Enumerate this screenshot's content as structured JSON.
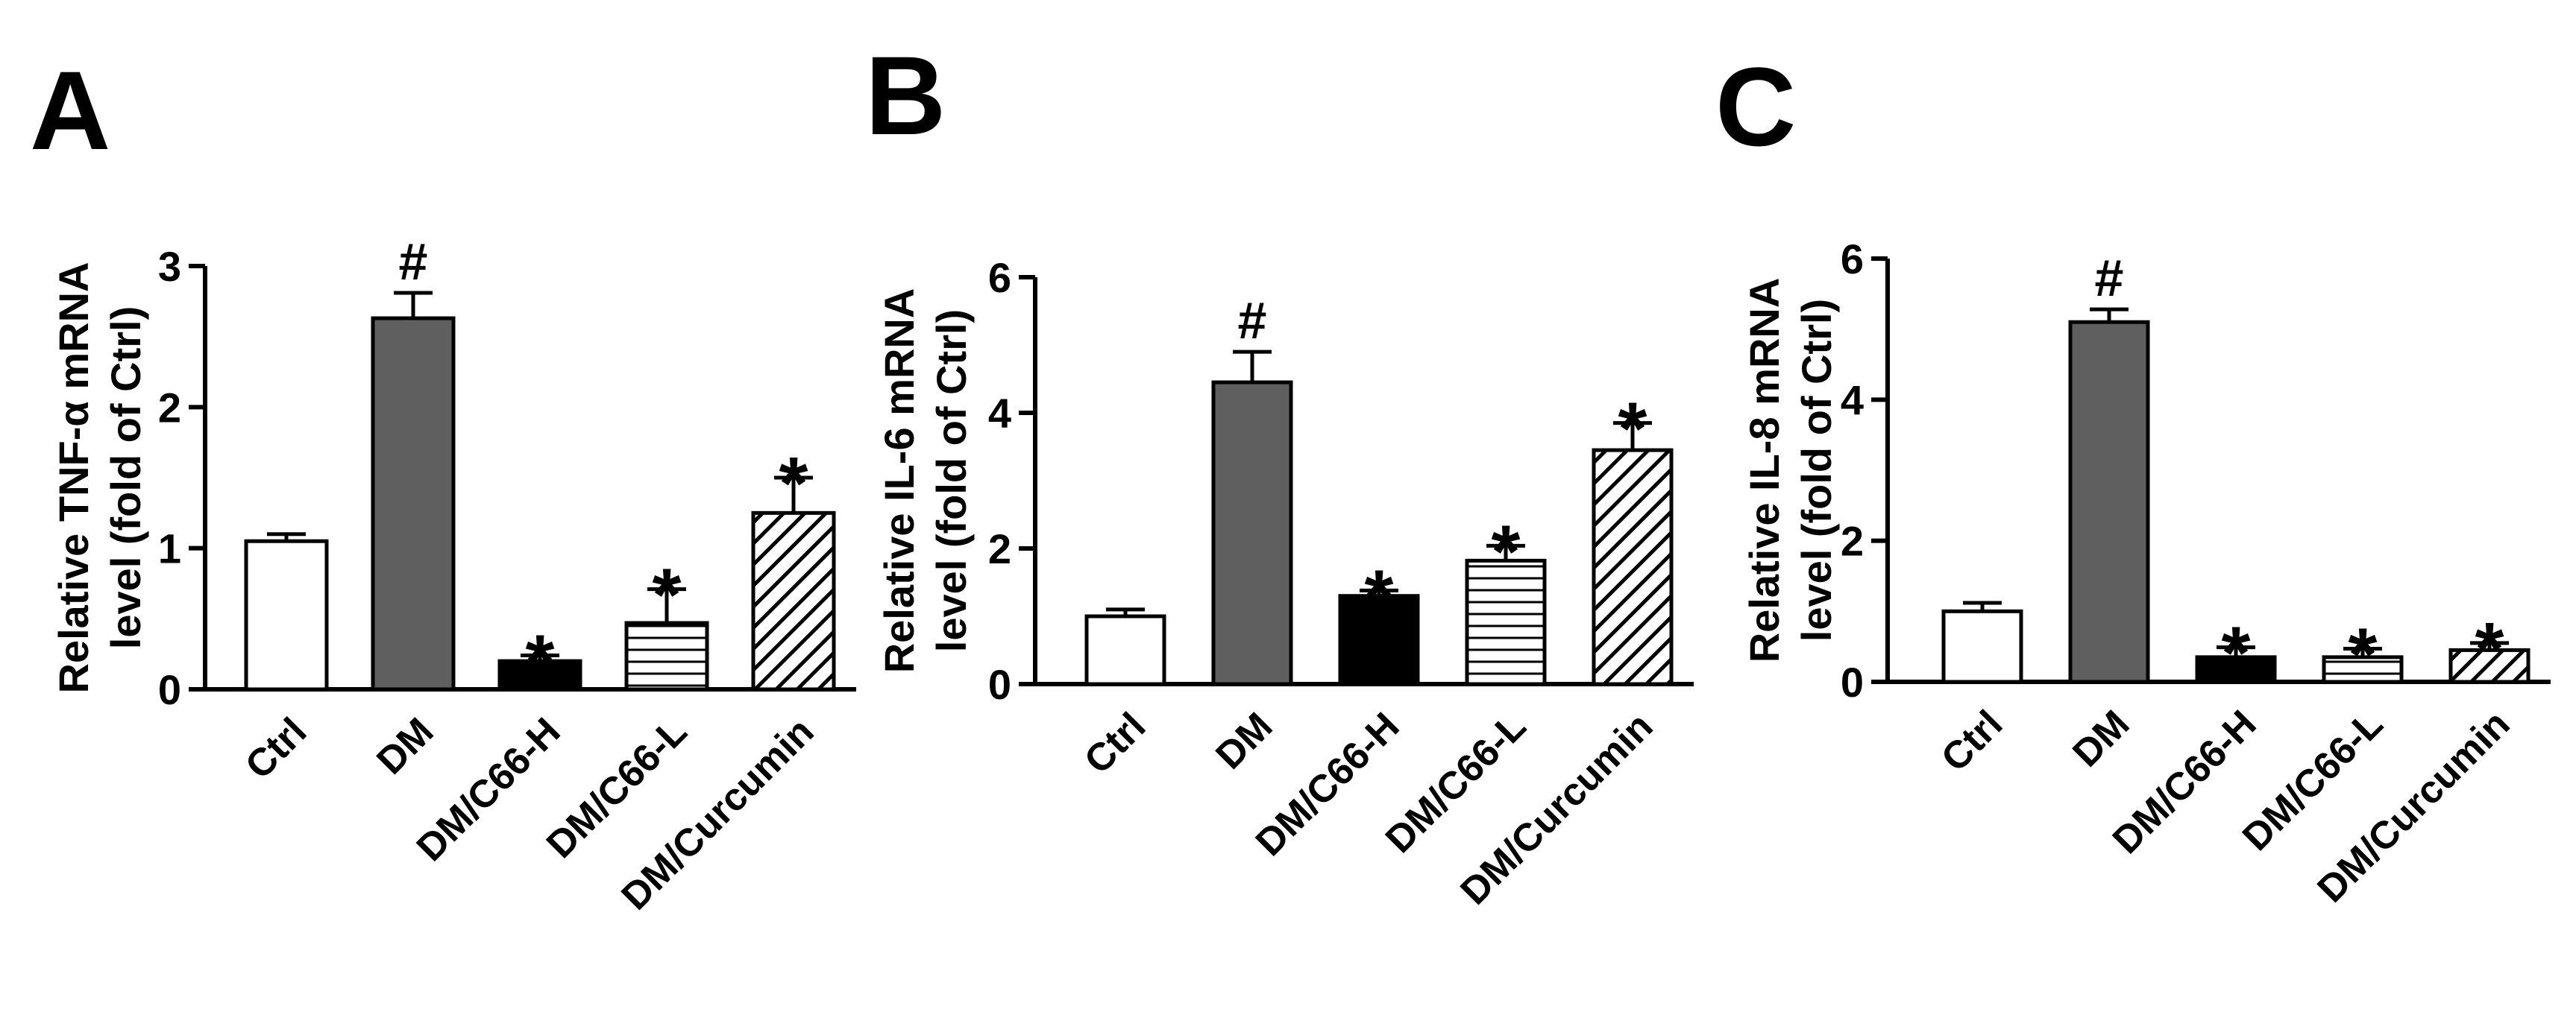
{
  "chart_data": [
    {
      "panel": "A",
      "type": "bar",
      "ylabel_line1": "Relative TNF-α mRNA",
      "ylabel_line2": "level (fold of Ctrl)",
      "ylim": [
        0,
        3
      ],
      "yticks": [
        "0",
        "1",
        "2",
        "3"
      ],
      "categories": [
        "Ctrl",
        "DM",
        "DM/C66-H",
        "DM/C66-L",
        "DM/Curcumin"
      ],
      "values": [
        1.05,
        2.63,
        0.2,
        0.47,
        1.25
      ],
      "errors": [
        0.05,
        0.18,
        0.04,
        0.24,
        0.25
      ],
      "marks": [
        "",
        "#",
        "*",
        "*",
        "*"
      ]
    },
    {
      "panel": "B",
      "type": "bar",
      "ylabel_line1": "Relative IL-6 mRNA",
      "ylabel_line2": "level (fold of Ctrl)",
      "ylim": [
        0,
        6
      ],
      "yticks": [
        "0",
        "2",
        "4",
        "6"
      ],
      "categories": [
        "Ctrl",
        "DM",
        "DM/C66-H",
        "DM/C66-L",
        "DM/Curcumin"
      ],
      "values": [
        1.0,
        4.45,
        1.3,
        1.82,
        3.45
      ],
      "errors": [
        0.1,
        0.45,
        0.08,
        0.22,
        0.4
      ],
      "marks": [
        "",
        "#",
        "*",
        "*",
        "*"
      ]
    },
    {
      "panel": "C",
      "type": "bar",
      "ylabel_line1": "Relative IL-8 mRNA",
      "ylabel_line2": "level (fold of Ctrl)",
      "ylim": [
        0,
        6
      ],
      "yticks": [
        "0",
        "2",
        "4",
        "6"
      ],
      "categories": [
        "Ctrl",
        "DM",
        "DM/C66-H",
        "DM/C66-L",
        "DM/Curcumin"
      ],
      "values": [
        1.0,
        5.1,
        0.35,
        0.35,
        0.45
      ],
      "errors": [
        0.12,
        0.18,
        0.14,
        0.12,
        0.1
      ],
      "marks": [
        "",
        "#",
        "*",
        "*",
        "*"
      ]
    }
  ],
  "bar_fills": [
    "white",
    "#606060",
    "#000000",
    "horizontal-stripes",
    "diagonal-hatch"
  ]
}
